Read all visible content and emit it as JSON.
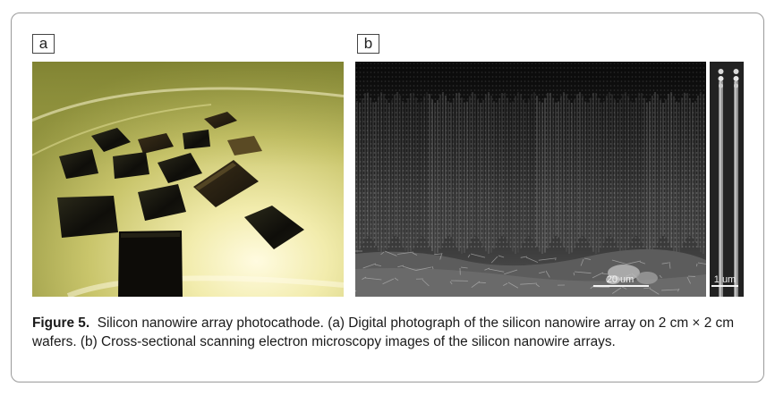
{
  "panels": {
    "a_label": "a",
    "b_label": "b"
  },
  "scale_bars": {
    "main": "20 um",
    "inset": "1 um"
  },
  "caption": {
    "figure_label": "Figure 5.",
    "text": "Silicon nanowire array photocathode. (a) Digital photograph of the silicon nanowire array on 2 cm × 2 cm wafers. (b) Cross-sectional scanning electron microscopy images of the silicon nanowire arrays."
  }
}
